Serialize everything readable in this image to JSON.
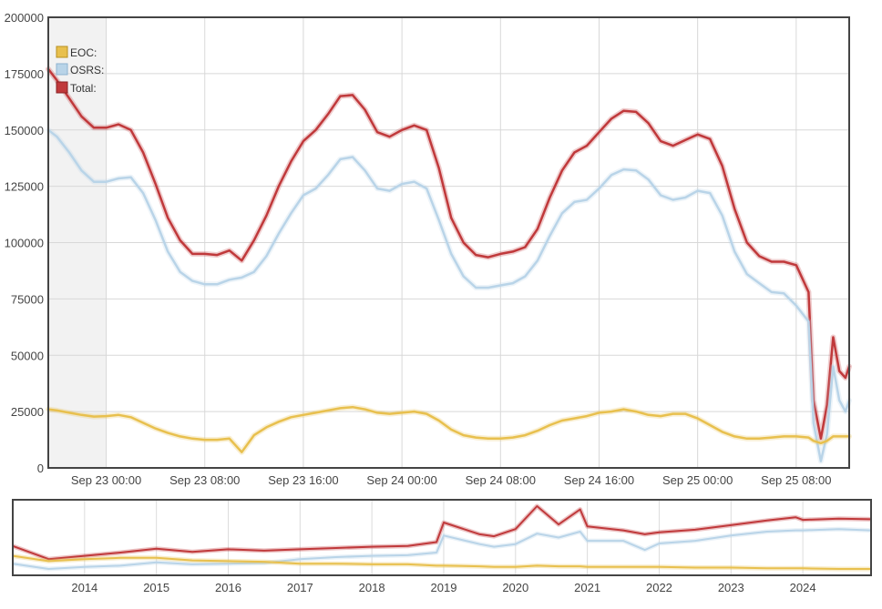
{
  "chart_data": [
    {
      "type": "line",
      "title": "",
      "xlabel": "",
      "ylabel": "",
      "ylim": [
        0,
        200000
      ],
      "y_ticks": [
        "200000",
        "175000",
        "150000",
        "125000",
        "100000",
        "75000",
        "50000",
        "25000",
        "0"
      ],
      "y_tick_values": [
        200000,
        175000,
        150000,
        125000,
        100000,
        75000,
        50000,
        25000,
        0
      ],
      "x_range_hours": [
        -4.7,
        60.3
      ],
      "x_ticks": [
        {
          "hour": 0,
          "label": "Sep 23 00:00"
        },
        {
          "hour": 8,
          "label": "Sep 23 08:00"
        },
        {
          "hour": 16,
          "label": "Sep 23 16:00"
        },
        {
          "hour": 24,
          "label": "Sep 24 00:00"
        },
        {
          "hour": 32,
          "label": "Sep 24 08:00"
        },
        {
          "hour": 40,
          "label": "Sep 24 16:00"
        },
        {
          "hour": 48,
          "label": "Sep 25 00:00"
        },
        {
          "hour": 56,
          "label": "Sep 25 08:00"
        }
      ],
      "shaded_region_hours": [
        -4.7,
        0
      ],
      "legend": [
        {
          "name": "EOC:",
          "color": "#e8c04e"
        },
        {
          "name": "OSRS:",
          "color": "#b9d4e8"
        },
        {
          "name": "Total:",
          "color": "#c0393b"
        }
      ],
      "x": [
        -4.7,
        -4,
        -3,
        -2,
        -1,
        0,
        1,
        2,
        3,
        4,
        5,
        6,
        7,
        8,
        9,
        10,
        11,
        12,
        13,
        14,
        15,
        16,
        17,
        18,
        19,
        20,
        21,
        22,
        23,
        24,
        25,
        26,
        27,
        28,
        29,
        30,
        31,
        32,
        33,
        34,
        35,
        36,
        37,
        38,
        39,
        40,
        41,
        42,
        43,
        44,
        45,
        46,
        47,
        48,
        49,
        50,
        51,
        52,
        53,
        54,
        55,
        56,
        57,
        57.4,
        58,
        58.5,
        59,
        59.5,
        60,
        60.3
      ],
      "series": [
        {
          "name": "Total",
          "color": "#c0393b",
          "values": [
            177000,
            172000,
            164000,
            156000,
            151000,
            151000,
            152500,
            150000,
            140000,
            126000,
            111000,
            101000,
            95000,
            95000,
            94500,
            96500,
            92000,
            101000,
            112000,
            125000,
            136000,
            145000,
            150000,
            157000,
            165000,
            165500,
            159000,
            149000,
            147000,
            150000,
            152000,
            150000,
            133000,
            111000,
            100000,
            94500,
            93500,
            95000,
            96000,
            98000,
            106000,
            120000,
            132000,
            140000,
            143000,
            149000,
            155000,
            158500,
            158000,
            153000,
            145000,
            143000,
            145500,
            148000,
            146000,
            134000,
            115000,
            100000,
            94000,
            91500,
            91500,
            90000,
            78000,
            30000,
            13000,
            28000,
            58000,
            43000,
            40000,
            45000
          ]
        },
        {
          "name": "OSRS",
          "color": "#b9d4e8",
          "values": [
            150000,
            147000,
            140000,
            132000,
            127000,
            127000,
            128500,
            129000,
            122000,
            110000,
            96000,
            87000,
            83000,
            81500,
            81500,
            83500,
            84500,
            87000,
            94000,
            104000,
            113000,
            121000,
            124000,
            130000,
            137000,
            138000,
            132000,
            124000,
            123000,
            126000,
            127000,
            124000,
            110000,
            95000,
            85000,
            80000,
            80000,
            81000,
            82000,
            85000,
            92000,
            103000,
            113000,
            118000,
            119000,
            124000,
            130000,
            132500,
            132000,
            128000,
            121000,
            119000,
            120000,
            123000,
            122000,
            112000,
            96000,
            86000,
            82000,
            78000,
            77500,
            72000,
            65000,
            20000,
            3000,
            15000,
            45000,
            30000,
            25000,
            30000
          ]
        },
        {
          "name": "EOC",
          "color": "#e8c04e",
          "values": [
            26000,
            25500,
            24500,
            23500,
            22800,
            23000,
            23500,
            22500,
            20000,
            17500,
            15500,
            14000,
            13000,
            12500,
            12500,
            13000,
            7000,
            14500,
            18000,
            20500,
            22500,
            23500,
            24500,
            25500,
            26500,
            27000,
            26000,
            24500,
            24000,
            24500,
            25000,
            24000,
            21000,
            17000,
            14500,
            13500,
            13000,
            13000,
            13500,
            14500,
            16500,
            19000,
            21000,
            22000,
            23000,
            24500,
            25000,
            26000,
            25000,
            23500,
            23000,
            24000,
            24000,
            22000,
            19000,
            16000,
            14000,
            13000,
            13000,
            13500,
            14000,
            14000,
            13500,
            12000,
            11000,
            12000,
            14000,
            14000,
            14000,
            14000
          ]
        }
      ]
    },
    {
      "type": "line",
      "title": "",
      "chart_role": "navigator",
      "x_range_years": [
        2013.0,
        2024.95
      ],
      "x_ticks": [
        "2014",
        "2015",
        "2016",
        "2017",
        "2018",
        "2019",
        "2020",
        "2021",
        "2022",
        "2023",
        "2024"
      ],
      "x_tick_values": [
        2014,
        2015,
        2016,
        2017,
        2018,
        2019,
        2020,
        2021,
        2022,
        2023,
        2024
      ],
      "ylim": [
        0,
        110000
      ],
      "x": [
        2013.0,
        2013.5,
        2014,
        2014.5,
        2015,
        2015.5,
        2016,
        2016.5,
        2017,
        2017.5,
        2018,
        2018.5,
        2018.9,
        2019,
        2019.5,
        2019.7,
        2020,
        2020.3,
        2020.6,
        2020.9,
        2021,
        2021.5,
        2021.8,
        2022,
        2022.5,
        2023,
        2023.5,
        2023.9,
        2024,
        2024.5,
        2024.95
      ],
      "series": [
        {
          "name": "Total",
          "color": "#c0393b",
          "values": [
            42000,
            22000,
            27000,
            32000,
            38000,
            33000,
            37000,
            35000,
            37000,
            39000,
            41000,
            42000,
            48000,
            78000,
            60000,
            57000,
            68000,
            103000,
            75000,
            98000,
            72000,
            66000,
            60000,
            63000,
            67000,
            74000,
            81000,
            86000,
            82000,
            84000,
            83000
          ]
        },
        {
          "name": "OSRS",
          "color": "#b9d4e8",
          "values": [
            15000,
            7000,
            10000,
            12000,
            17000,
            14000,
            15000,
            16000,
            22000,
            25000,
            27000,
            28000,
            32000,
            58000,
            45000,
            41000,
            45000,
            61000,
            55000,
            64000,
            50000,
            50000,
            36000,
            46000,
            50000,
            58000,
            64000,
            66000,
            66000,
            68000,
            66000
          ]
        },
        {
          "name": "EOC",
          "color": "#e8c04e",
          "values": [
            27000,
            19000,
            22000,
            24000,
            24000,
            20000,
            19000,
            18000,
            15000,
            15000,
            14000,
            14000,
            12000,
            12000,
            11000,
            10000,
            10000,
            12000,
            11000,
            11000,
            10000,
            10000,
            10000,
            10000,
            9000,
            9000,
            8000,
            8000,
            8000,
            7000,
            7000
          ]
        }
      ]
    }
  ]
}
